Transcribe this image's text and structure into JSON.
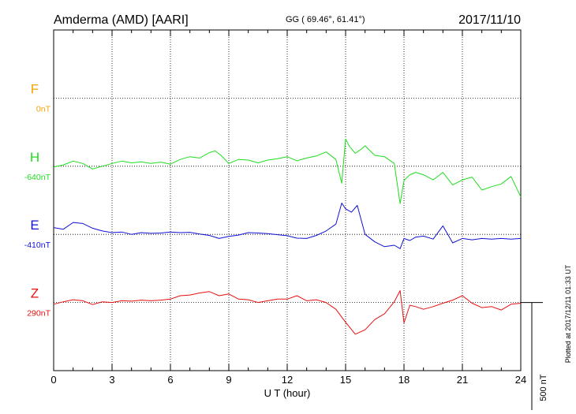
{
  "header": {
    "station": "Amderma (AMD)  [AARI]",
    "coords": "GG ( 69.46°,  61.41°)",
    "date": "2017/11/10"
  },
  "side_note": "Plotted at 2017/12/11 01:33 UT",
  "chart_data": {
    "type": "line",
    "xlabel": "U T (hour)",
    "xlim": [
      0,
      24
    ],
    "x_ticks": [
      0,
      3,
      6,
      9,
      12,
      15,
      18,
      21,
      24
    ],
    "x_tick_labels": [
      "0",
      "3",
      "6",
      "9",
      "12",
      "15",
      "18",
      "21",
      "24"
    ],
    "ylim": [
      -1000,
      0
    ],
    "y_unit": "nT",
    "grid": true,
    "scale_bar": {
      "label": "500 nT",
      "value": 500
    },
    "colors": {
      "F": "#f2a400",
      "H": "#1fdd1f",
      "E": "#1212d6",
      "Z": "#e61010"
    },
    "series": [
      {
        "name": "F",
        "baseline_label": "0nT",
        "baseline": -200,
        "x": [],
        "y": []
      },
      {
        "name": "H",
        "baseline_label": "-640nT",
        "baseline": -400,
        "x": [
          0,
          0.5,
          1,
          1.5,
          2,
          2.5,
          3,
          3.5,
          4,
          4.5,
          5,
          5.5,
          6,
          6.5,
          7,
          7.5,
          8,
          8.3,
          8.6,
          9,
          9.5,
          10,
          10.5,
          11,
          11.5,
          12,
          12.5,
          13,
          13.5,
          14,
          14.5,
          14.8,
          15,
          15.2,
          15.5,
          15.8,
          16,
          16.5,
          17,
          17.5,
          17.8,
          18,
          18.3,
          18.6,
          19,
          19.5,
          20,
          20.5,
          21,
          21.5,
          22,
          22.5,
          23,
          23.5,
          24
        ],
        "y": [
          -402,
          -396,
          -385,
          -392,
          -408,
          -400,
          -392,
          -385,
          -390,
          -387,
          -392,
          -388,
          -394,
          -380,
          -372,
          -376,
          -360,
          -355,
          -368,
          -392,
          -380,
          -382,
          -390,
          -382,
          -378,
          -372,
          -384,
          -376,
          -370,
          -358,
          -380,
          -450,
          -320,
          -342,
          -362,
          -350,
          -340,
          -368,
          -372,
          -392,
          -510,
          -442,
          -425,
          -418,
          -425,
          -440,
          -418,
          -455,
          -440,
          -432,
          -470,
          -460,
          -452,
          -430,
          -490
        ]
      },
      {
        "name": "E",
        "baseline_label": "-410nT",
        "baseline": -600,
        "x": [
          0,
          0.5,
          1,
          1.5,
          2,
          2.5,
          3,
          3.5,
          4,
          4.5,
          5,
          5.5,
          6,
          6.5,
          7,
          7.5,
          8,
          8.5,
          9,
          9.5,
          10,
          10.5,
          11,
          11.5,
          12,
          12.5,
          13,
          13.5,
          14,
          14.5,
          14.8,
          15,
          15.3,
          15.6,
          16,
          16.5,
          17,
          17.5,
          17.8,
          18,
          18.3,
          18.6,
          19,
          19.5,
          20,
          20.5,
          21,
          21.5,
          22,
          22.5,
          23,
          23.5,
          24
        ],
        "y": [
          -580,
          -585,
          -565,
          -568,
          -582,
          -590,
          -595,
          -593,
          -600,
          -595,
          -597,
          -596,
          -593,
          -595,
          -594,
          -599,
          -603,
          -612,
          -606,
          -602,
          -595,
          -596,
          -598,
          -601,
          -604,
          -611,
          -612,
          -603,
          -590,
          -570,
          -508,
          -525,
          -535,
          -515,
          -600,
          -622,
          -636,
          -632,
          -642,
          -612,
          -618,
          -608,
          -605,
          -614,
          -575,
          -625,
          -612,
          -616,
          -612,
          -614,
          -612,
          -614,
          -612
        ]
      },
      {
        "name": "Z",
        "baseline_label": "290nT",
        "baseline": -800,
        "x": [
          0,
          0.5,
          1,
          1.5,
          2,
          2.5,
          3,
          3.5,
          4,
          4.5,
          5,
          5.5,
          6,
          6.5,
          7,
          7.5,
          8,
          8.5,
          9,
          9.5,
          10,
          10.5,
          11,
          11.5,
          12,
          12.5,
          13,
          13.5,
          14,
          14.5,
          15,
          15.5,
          16,
          16.5,
          17,
          17.5,
          17.8,
          18,
          18.3,
          18.6,
          19,
          19.5,
          20,
          20.5,
          21,
          21.5,
          22,
          22.5,
          23,
          23.5,
          24
        ],
        "y": [
          -805,
          -798,
          -792,
          -795,
          -806,
          -798,
          -800,
          -795,
          -796,
          -793,
          -795,
          -793,
          -790,
          -780,
          -778,
          -772,
          -768,
          -780,
          -775,
          -790,
          -792,
          -800,
          -795,
          -790,
          -790,
          -780,
          -795,
          -792,
          -800,
          -820,
          -858,
          -893,
          -880,
          -850,
          -833,
          -798,
          -765,
          -860,
          -808,
          -812,
          -820,
          -812,
          -802,
          -793,
          -780,
          -802,
          -815,
          -812,
          -822,
          -805,
          -802
        ]
      }
    ]
  }
}
